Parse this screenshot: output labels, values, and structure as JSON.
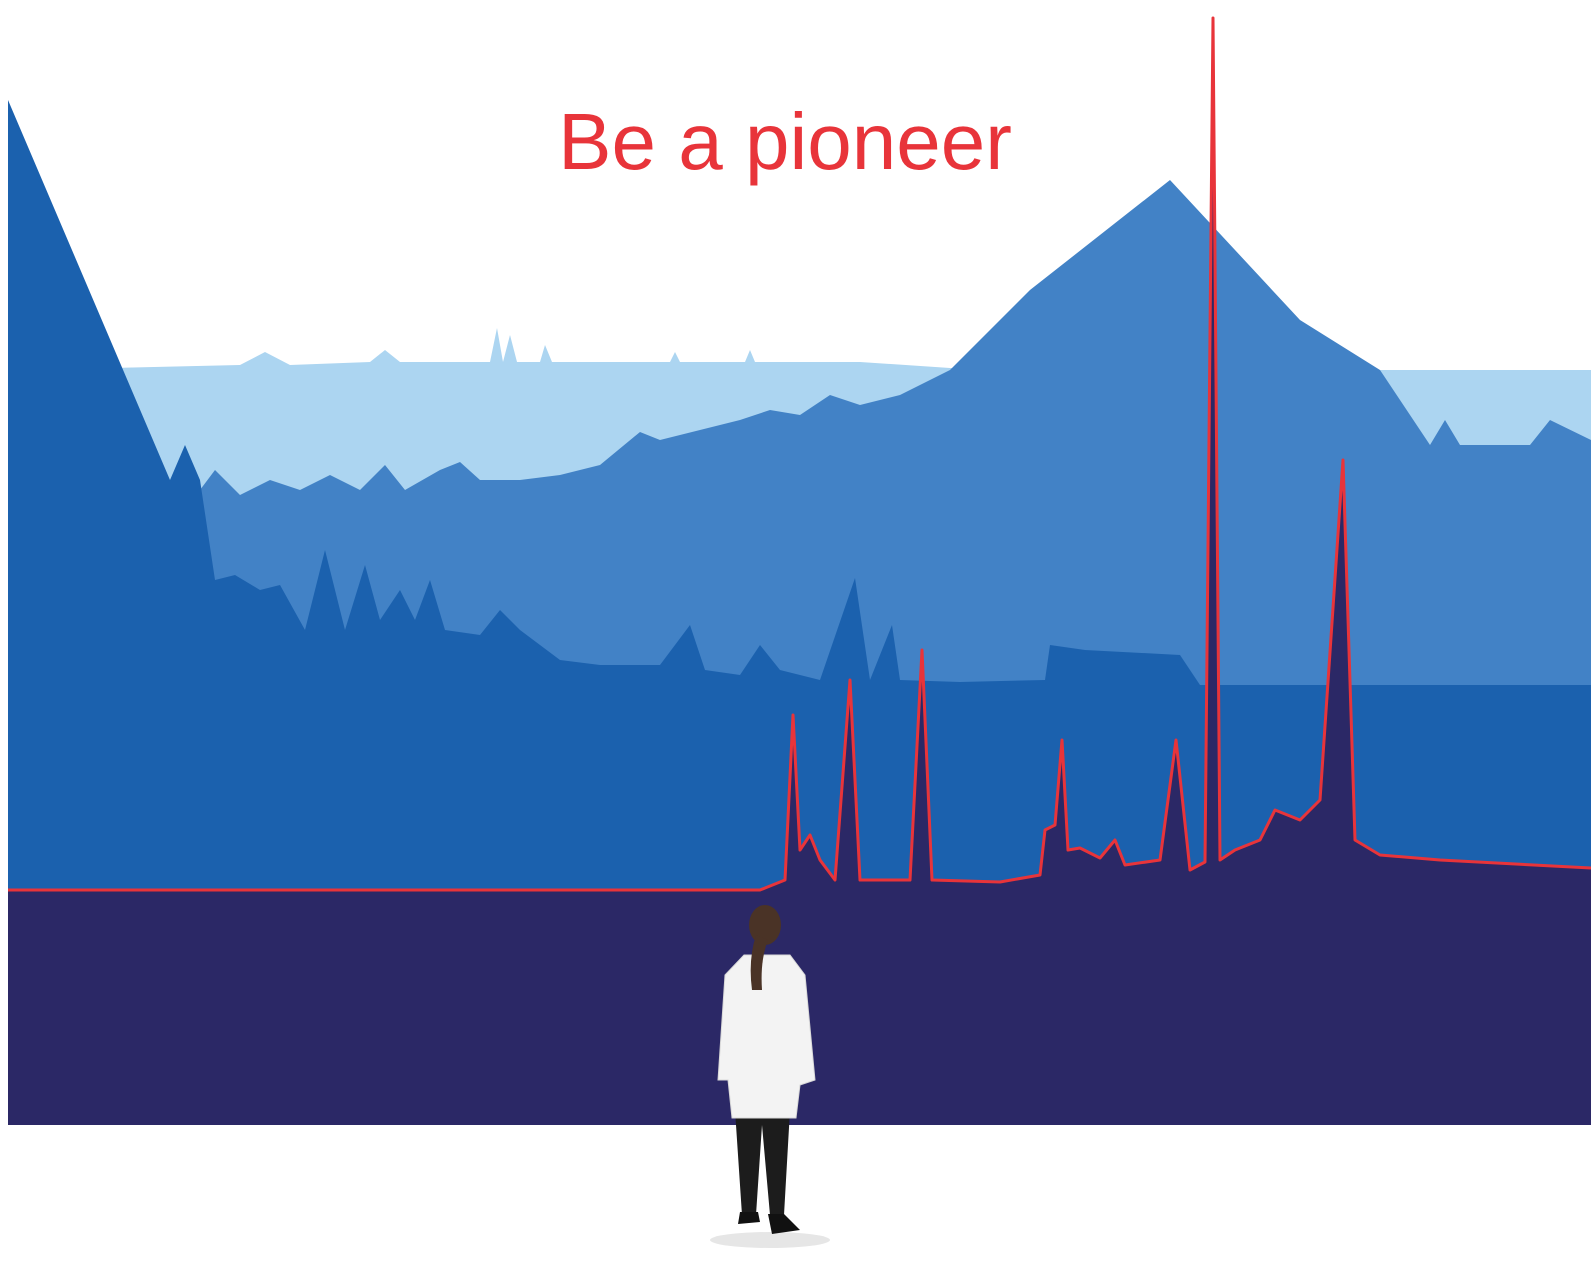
{
  "headline": "Be a pioneer"
}
